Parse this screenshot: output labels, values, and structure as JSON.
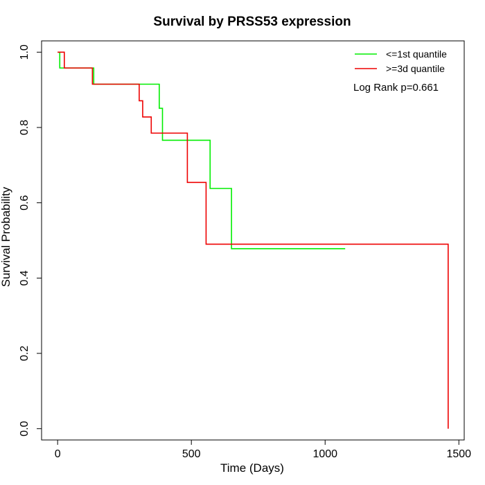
{
  "chart_data": {
    "type": "line",
    "subtype": "kaplan-meier step",
    "title": "Survival by PRSS53 expression",
    "xlabel": "Time (Days)",
    "ylabel": "Survival Probability",
    "xlim": [
      -60,
      1520
    ],
    "ylim": [
      -0.03,
      1.03
    ],
    "xticks": [
      "0",
      "500",
      "1000",
      "1500"
    ],
    "yticks": [
      "0.0",
      "0.2",
      "0.4",
      "0.6",
      "0.8",
      "1.0"
    ],
    "legend_position": "top-right",
    "annotation": "Log Rank p=0.661",
    "series": [
      {
        "name": "<=1st quantile",
        "color": "#00ee00",
        "x": [
          0,
          8,
          135,
          380,
          392,
          570,
          650,
          1075
        ],
        "y": [
          1.0,
          0.958,
          0.915,
          0.851,
          0.766,
          0.638,
          0.478,
          0.478
        ]
      },
      {
        "name": ">=3d quantile",
        "color": "#ee0000",
        "x": [
          0,
          25,
          130,
          305,
          318,
          350,
          485,
          555,
          1460,
          1460
        ],
        "y": [
          1.0,
          0.958,
          0.915,
          0.871,
          0.828,
          0.785,
          0.654,
          0.49,
          0.49,
          0.0
        ]
      }
    ]
  }
}
